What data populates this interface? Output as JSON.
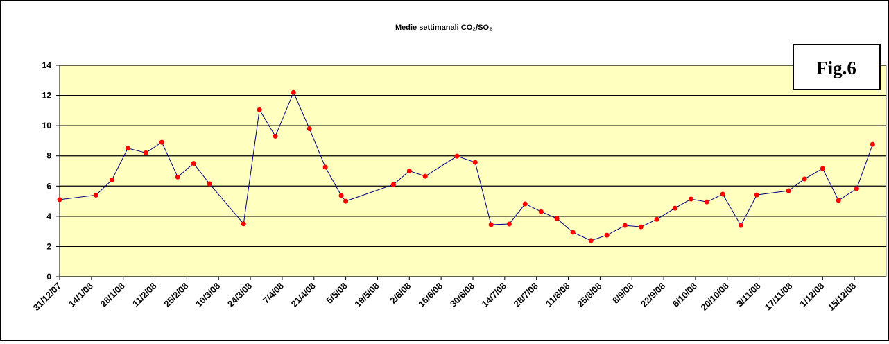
{
  "chart_data": {
    "type": "line",
    "title": "Medie settimanali CO₂/SO₂",
    "annotation": "Fig.6",
    "x": [
      "2007-12-31",
      "2008-01-16",
      "2008-01-23",
      "2008-01-30",
      "2008-02-07",
      "2008-02-14",
      "2008-02-21",
      "2008-02-28",
      "2008-03-06",
      "2008-03-21",
      "2008-03-28",
      "2008-04-04",
      "2008-04-12",
      "2008-04-19",
      "2008-04-26",
      "2008-05-03",
      "2008-05-05",
      "2008-05-26",
      "2008-06-02",
      "2008-06-09",
      "2008-06-23",
      "2008-07-01",
      "2008-07-08",
      "2008-07-16",
      "2008-07-23",
      "2008-07-30",
      "2008-08-06",
      "2008-08-13",
      "2008-08-21",
      "2008-08-28",
      "2008-09-05",
      "2008-09-12",
      "2008-09-19",
      "2008-09-27",
      "2008-10-04",
      "2008-10-11",
      "2008-10-18",
      "2008-10-26",
      "2008-11-02",
      "2008-11-16",
      "2008-11-23",
      "2008-12-01",
      "2008-12-08",
      "2008-12-16",
      "2008-12-23"
    ],
    "series": [
      {
        "name": "CO₂/SO₂",
        "color": "#000080",
        "marker_color": "#ff0000",
        "values": [
          5.1,
          5.4,
          6.4,
          8.5,
          8.2,
          8.9,
          6.6,
          7.5,
          6.15,
          3.5,
          11.05,
          9.3,
          12.2,
          9.8,
          7.25,
          5.37,
          5.0,
          6.1,
          7.0,
          6.65,
          7.98,
          7.57,
          3.44,
          3.49,
          4.82,
          4.31,
          3.85,
          2.94,
          2.39,
          2.75,
          3.39,
          3.3,
          3.8,
          4.54,
          5.14,
          4.95,
          5.46,
          3.39,
          5.41,
          5.69,
          6.47,
          7.16,
          5.05,
          5.83,
          8.76
        ]
      }
    ],
    "xlim": [
      "2007-12-31",
      "2008-12-29"
    ],
    "xticks": [
      {
        "value": "2007-12-31",
        "label": "31/12/07"
      },
      {
        "value": "2008-01-14",
        "label": "14/1/08"
      },
      {
        "value": "2008-01-28",
        "label": "28/1/08"
      },
      {
        "value": "2008-02-11",
        "label": "11/2/08"
      },
      {
        "value": "2008-02-25",
        "label": "25/2/08"
      },
      {
        "value": "2008-03-10",
        "label": "10/3/08"
      },
      {
        "value": "2008-03-24",
        "label": "24/3/08"
      },
      {
        "value": "2008-04-07",
        "label": "7/4/08"
      },
      {
        "value": "2008-04-21",
        "label": "21/4/08"
      },
      {
        "value": "2008-05-05",
        "label": "5/5/08"
      },
      {
        "value": "2008-05-19",
        "label": "19/5/08"
      },
      {
        "value": "2008-06-02",
        "label": "2/6/08"
      },
      {
        "value": "2008-06-16",
        "label": "16/6/08"
      },
      {
        "value": "2008-06-30",
        "label": "30/6/08"
      },
      {
        "value": "2008-07-14",
        "label": "14/7/08"
      },
      {
        "value": "2008-07-28",
        "label": "28/7/08"
      },
      {
        "value": "2008-08-11",
        "label": "11/8/08"
      },
      {
        "value": "2008-08-25",
        "label": "25/8/08"
      },
      {
        "value": "2008-09-08",
        "label": "8/9/08"
      },
      {
        "value": "2008-09-22",
        "label": "22/9/08"
      },
      {
        "value": "2008-10-06",
        "label": "6/10/08"
      },
      {
        "value": "2008-10-20",
        "label": "20/10/08"
      },
      {
        "value": "2008-11-03",
        "label": "3/11/08"
      },
      {
        "value": "2008-11-17",
        "label": "17/11/08"
      },
      {
        "value": "2008-12-01",
        "label": "1/12/08"
      },
      {
        "value": "2008-12-15",
        "label": "15/12/08"
      }
    ],
    "ylim": [
      0,
      14
    ],
    "yticks": [
      0,
      2,
      4,
      6,
      8,
      10,
      12,
      14
    ],
    "grid": true,
    "plot_background": "#ffffc0"
  }
}
